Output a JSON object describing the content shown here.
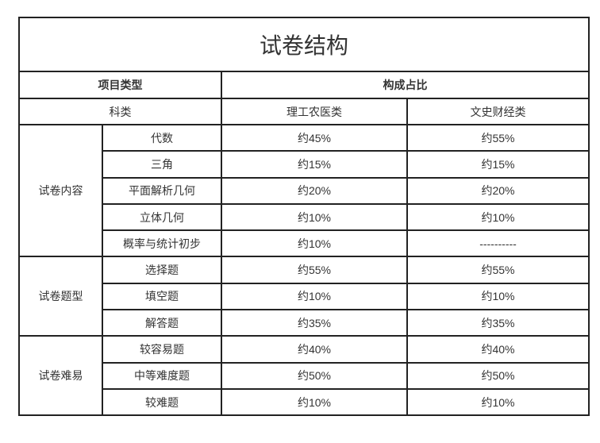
{
  "title": "试卷结构",
  "header": {
    "item_type": "项目类型",
    "ratio": "构成占比"
  },
  "subheader": {
    "category": "科类",
    "science": "理工农医类",
    "arts": "文史财经类"
  },
  "groups": [
    {
      "name": "试卷内容",
      "rows": [
        {
          "item": "代数",
          "science": "约45%",
          "arts": "约55%"
        },
        {
          "item": "三角",
          "science": "约15%",
          "arts": "约15%"
        },
        {
          "item": "平面解析几何",
          "science": "约20%",
          "arts": "约20%"
        },
        {
          "item": "立体几何",
          "science": "约10%",
          "arts": "约10%"
        },
        {
          "item": "概率与统计初步",
          "science": "约10%",
          "arts": "----------"
        }
      ]
    },
    {
      "name": "试卷题型",
      "rows": [
        {
          "item": "选择题",
          "science": "约55%",
          "arts": "约55%"
        },
        {
          "item": "填空题",
          "science": "约10%",
          "arts": "约10%"
        },
        {
          "item": "解答题",
          "science": "约35%",
          "arts": "约35%"
        }
      ]
    },
    {
      "name": "试卷难易",
      "rows": [
        {
          "item": "较容易题",
          "science": "约40%",
          "arts": "约40%"
        },
        {
          "item": "中等难度题",
          "science": "约50%",
          "arts": "约50%"
        },
        {
          "item": "较难题",
          "science": "约10%",
          "arts": "约10%"
        }
      ]
    }
  ]
}
